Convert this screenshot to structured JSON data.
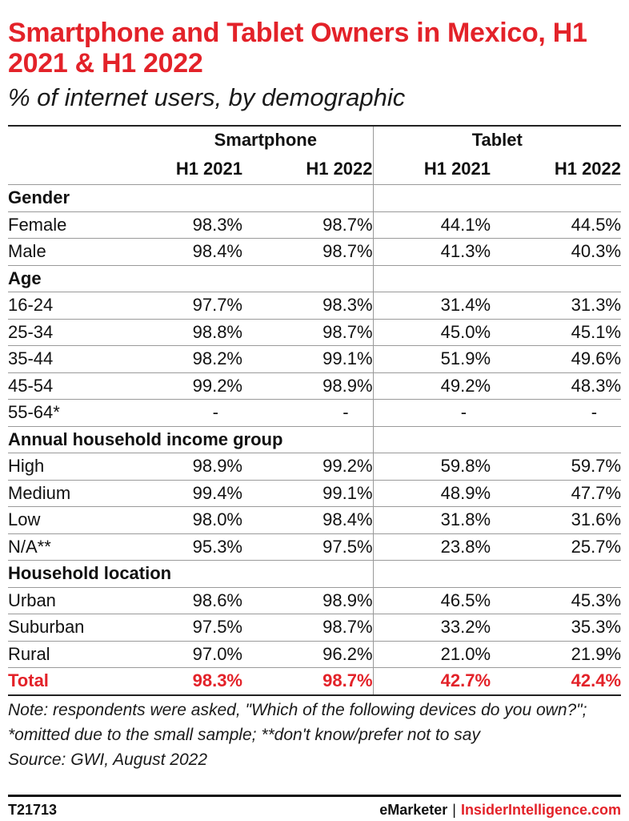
{
  "chart_data": {
    "type": "table",
    "title": "Smartphone and Tablet Owners in Mexico, H1 2021 & H1 2022",
    "subtitle": "% of internet users, by demographic",
    "groups": [
      "Smartphone",
      "Tablet"
    ],
    "columns": [
      "H1 2021",
      "H1 2022",
      "H1 2021",
      "H1 2022"
    ],
    "sections": [
      {
        "name": "Gender",
        "rows": [
          {
            "label": "Female",
            "values": [
              "98.3%",
              "98.7%",
              "44.1%",
              "44.5%"
            ]
          },
          {
            "label": "Male",
            "values": [
              "98.4%",
              "98.7%",
              "41.3%",
              "40.3%"
            ]
          }
        ]
      },
      {
        "name": "Age",
        "rows": [
          {
            "label": "16-24",
            "values": [
              "97.7%",
              "98.3%",
              "31.4%",
              "31.3%"
            ]
          },
          {
            "label": "25-34",
            "values": [
              "98.8%",
              "98.7%",
              "45.0%",
              "45.1%"
            ]
          },
          {
            "label": "35-44",
            "values": [
              "98.2%",
              "99.1%",
              "51.9%",
              "49.6%"
            ]
          },
          {
            "label": "45-54",
            "values": [
              "99.2%",
              "98.9%",
              "49.2%",
              "48.3%"
            ]
          },
          {
            "label": "55-64*",
            "values": [
              "-",
              "-",
              "-",
              "-"
            ]
          }
        ]
      },
      {
        "name": "Annual household income group",
        "rows": [
          {
            "label": "High",
            "values": [
              "98.9%",
              "99.2%",
              "59.8%",
              "59.7%"
            ]
          },
          {
            "label": "Medium",
            "values": [
              "99.4%",
              "99.1%",
              "48.9%",
              "47.7%"
            ]
          },
          {
            "label": "Low",
            "values": [
              "98.0%",
              "98.4%",
              "31.8%",
              "31.6%"
            ]
          },
          {
            "label": "N/A**",
            "values": [
              "95.3%",
              "97.5%",
              "23.8%",
              "25.7%"
            ]
          }
        ]
      },
      {
        "name": "Household location",
        "rows": [
          {
            "label": "Urban",
            "values": [
              "98.6%",
              "98.9%",
              "46.5%",
              "45.3%"
            ]
          },
          {
            "label": "Suburban",
            "values": [
              "97.5%",
              "98.7%",
              "33.2%",
              "35.3%"
            ]
          },
          {
            "label": "Rural",
            "values": [
              "97.0%",
              "96.2%",
              "21.0%",
              "21.9%"
            ]
          }
        ]
      }
    ],
    "total": {
      "label": "Total",
      "values": [
        "98.3%",
        "98.7%",
        "42.7%",
        "42.4%"
      ]
    }
  },
  "notes": {
    "note": "Note: respondents were asked, \"Which of the following devices do you own?\"; *omitted due to the small sample; **don't know/prefer not to say",
    "source": "Source: GWI, August 2022"
  },
  "footer": {
    "chart_id": "T21713",
    "brand": "eMarketer",
    "separator": "|",
    "brand2": "InsiderIntelligence.com"
  },
  "colors": {
    "accent": "#e32229",
    "text": "#111111",
    "rule": "#9a9a9a"
  }
}
